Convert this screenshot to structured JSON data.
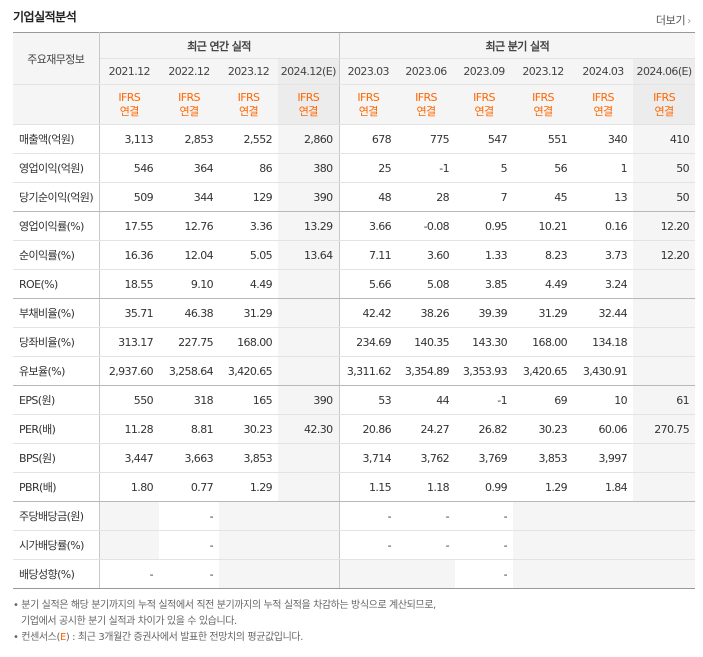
{
  "title": "기업실적분석",
  "more_label": "더보기",
  "header": {
    "row_label": "주요재무정보",
    "annual_group": "최근 연간 실적",
    "quarter_group": "최근 분기 실적",
    "periods": [
      "2021.12",
      "2022.12",
      "2023.12",
      "2024.12(E)",
      "2023.03",
      "2023.06",
      "2023.09",
      "2023.12",
      "2024.03",
      "2024.06(E)"
    ],
    "basis_top": "IFRS",
    "basis_bottom": "연결"
  },
  "rows": [
    {
      "label": "매출액(억원)",
      "values": [
        "3,113",
        "2,853",
        "2,552",
        "2,860",
        "678",
        "775",
        "547",
        "551",
        "340",
        "410"
      ]
    },
    {
      "label": "영업이익(억원)",
      "values": [
        "546",
        "364",
        "86",
        "380",
        "25",
        "-1",
        "5",
        "56",
        "1",
        "50"
      ]
    },
    {
      "label": "당기순이익(억원)",
      "values": [
        "509",
        "344",
        "129",
        "390",
        "48",
        "28",
        "7",
        "45",
        "13",
        "50"
      ]
    },
    {
      "label": "영업이익률(%)",
      "values": [
        "17.55",
        "12.76",
        "3.36",
        "13.29",
        "3.66",
        "-0.08",
        "0.95",
        "10.21",
        "0.16",
        "12.20"
      ]
    },
    {
      "label": "순이익률(%)",
      "values": [
        "16.36",
        "12.04",
        "5.05",
        "13.64",
        "7.11",
        "3.60",
        "1.33",
        "8.23",
        "3.73",
        "12.20"
      ]
    },
    {
      "label": "ROE(%)",
      "values": [
        "18.55",
        "9.10",
        "4.49",
        "",
        "5.66",
        "5.08",
        "3.85",
        "4.49",
        "3.24",
        ""
      ]
    },
    {
      "label": "부채비율(%)",
      "values": [
        "35.71",
        "46.38",
        "31.29",
        "",
        "42.42",
        "38.26",
        "39.39",
        "31.29",
        "32.44",
        ""
      ]
    },
    {
      "label": "당좌비율(%)",
      "values": [
        "313.17",
        "227.75",
        "168.00",
        "",
        "234.69",
        "140.35",
        "143.30",
        "168.00",
        "134.18",
        ""
      ]
    },
    {
      "label": "유보율(%)",
      "values": [
        "2,937.60",
        "3,258.64",
        "3,420.65",
        "",
        "3,311.62",
        "3,354.89",
        "3,353.93",
        "3,420.65",
        "3,430.91",
        ""
      ]
    },
    {
      "label": "EPS(원)",
      "values": [
        "550",
        "318",
        "165",
        "390",
        "53",
        "44",
        "-1",
        "69",
        "10",
        "61"
      ]
    },
    {
      "label": "PER(배)",
      "values": [
        "11.28",
        "8.81",
        "30.23",
        "42.30",
        "20.86",
        "24.27",
        "26.82",
        "30.23",
        "60.06",
        "270.75"
      ]
    },
    {
      "label": "BPS(원)",
      "values": [
        "3,447",
        "3,663",
        "3,853",
        "",
        "3,714",
        "3,762",
        "3,769",
        "3,853",
        "3,997",
        ""
      ]
    },
    {
      "label": "PBR(배)",
      "values": [
        "1.80",
        "0.77",
        "1.29",
        "",
        "1.15",
        "1.18",
        "0.99",
        "1.29",
        "1.84",
        ""
      ]
    },
    {
      "label": "주당배당금(원)",
      "values": [
        "",
        "-",
        "",
        "",
        "-",
        "-",
        "-",
        "",
        "",
        ""
      ]
    },
    {
      "label": "시가배당률(%)",
      "values": [
        "",
        "-",
        "",
        "",
        "-",
        "-",
        "-",
        "",
        "",
        ""
      ]
    },
    {
      "label": "배당성향(%)",
      "values": [
        "-",
        "-",
        "",
        "",
        "",
        "",
        "-",
        "",
        "",
        ""
      ]
    }
  ],
  "notes": {
    "line1": "분기 실적은 해당 분기까지의 누적 실적에서 직전 분기까지의 누적 실적을 차감하는 방식으로 계산되므로,",
    "line2": "기업에서 공시한 분기 실적과 차이가 있을 수 있습니다.",
    "line3_pre": "컨센서스(",
    "line3_e": "E",
    "line3_post": ") : 최근 3개월간 증권사에서 발표한 전망치의 평균값입니다."
  }
}
